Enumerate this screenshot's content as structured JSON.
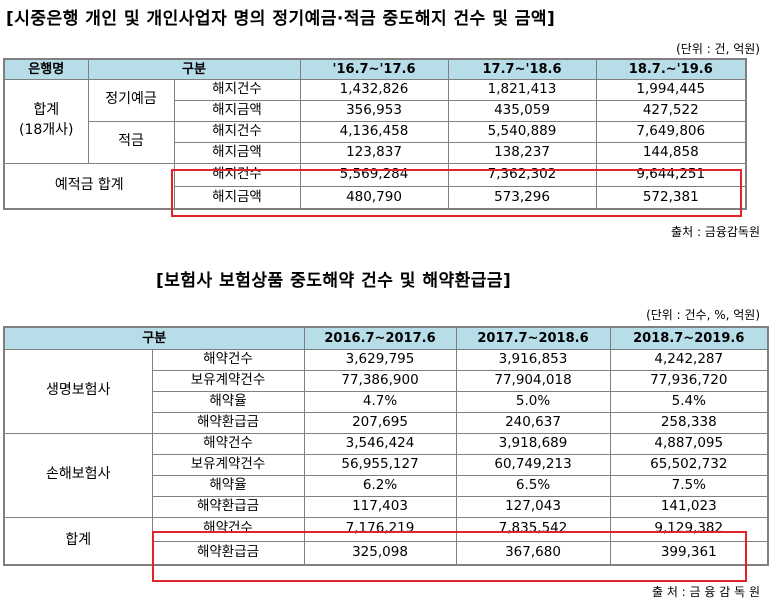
{
  "table1": {
    "title": "[시중은행 개인 및 개인사업자 명의 정기예금·적금 중도해지 건수 및 금액]",
    "unit": "(단위 : 건, 억원)",
    "header": {
      "bank": "은행명",
      "category": "구분",
      "periods": [
        "'16.7~'17.6",
        "17.7~'18.6",
        "18.7.~'19.6"
      ]
    },
    "group_total": "합계",
    "group_total_sub": "(18개사)",
    "products": {
      "deposit": "정기예금",
      "savings": "적금",
      "combined": "예적금 합계"
    },
    "measures": {
      "count": "해지건수",
      "amount": "해지금액"
    },
    "rows": {
      "deposit_count": [
        "1,432,826",
        "1,821,413",
        "1,994,445"
      ],
      "deposit_amount": [
        "356,953",
        "435,059",
        "427,522"
      ],
      "savings_count": [
        "4,136,458",
        "5,540,889",
        "7,649,806"
      ],
      "savings_amount": [
        "123,837",
        "138,237",
        "144,858"
      ],
      "total_count": [
        "5,569,284",
        "7,362,302",
        "9,644,251"
      ],
      "total_amount": [
        "480,790",
        "573,296",
        "572,381"
      ]
    },
    "source": "출처 : 금융감독원"
  },
  "table2": {
    "title": "[보험사 보험상품 중도해약 건수 및 해약환급금]",
    "unit": "(단위 : 건수, %, 억원)",
    "header": {
      "category": "구분",
      "periods": [
        "2016.7~2017.6",
        "2017.7~2018.6",
        "2018.7~2019.6"
      ]
    },
    "groups": {
      "life": "생명보험사",
      "nonlife": "손해보험사",
      "total": "합계"
    },
    "measures": {
      "cancel_count": "해약건수",
      "held_count": "보유계약건수",
      "cancel_rate": "해약율",
      "refund": "해약환급금"
    },
    "rows": {
      "life_cancel_count": [
        "3,629,795",
        "3,916,853",
        "4,242,287"
      ],
      "life_held_count": [
        "77,386,900",
        "77,904,018",
        "77,936,720"
      ],
      "life_cancel_rate": [
        "4.7%",
        "5.0%",
        "5.4%"
      ],
      "life_refund": [
        "207,695",
        "240,637",
        "258,338"
      ],
      "nonlife_cancel_count": [
        "3,546,424",
        "3,918,689",
        "4,887,095"
      ],
      "nonlife_held_count": [
        "56,955,127",
        "60,749,213",
        "65,502,732"
      ],
      "nonlife_cancel_rate": [
        "6.2%",
        "6.5%",
        "7.5%"
      ],
      "nonlife_refund": [
        "117,403",
        "127,043",
        "141,023"
      ],
      "total_cancel_count": [
        "7,176,219",
        "7,835,542",
        "9,129,382"
      ],
      "total_refund": [
        "325,098",
        "367,680",
        "399,361"
      ]
    },
    "source": "출 처 : 금 융 감 독 원"
  },
  "colors": {
    "header_bg": "#b7dde8",
    "border": "#7f7f7f",
    "highlight": "#e0242a"
  }
}
